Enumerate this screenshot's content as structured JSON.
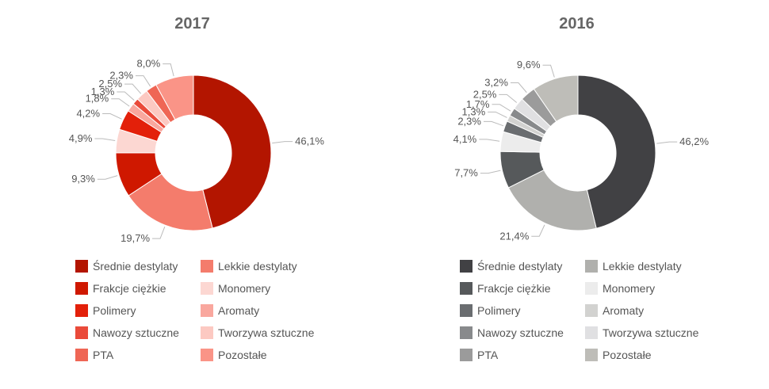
{
  "chart_data": [
    {
      "type": "pie",
      "title": "2017",
      "categories": [
        "Średnie destylaty",
        "Lekkie destylaty",
        "Frakcje ciężkie",
        "Monomery",
        "Polimery",
        "Aromaty",
        "Nawozy sztuczne",
        "Tworzywa sztuczne",
        "PTA",
        "Pozostałe"
      ],
      "values": [
        46.1,
        19.7,
        9.3,
        4.9,
        4.2,
        1.8,
        1.3,
        2.5,
        2.3,
        8.0
      ],
      "value_labels": [
        "46,1%",
        "19,7%",
        "9,3%",
        "4,9%",
        "4,2%",
        "1,8%",
        "1,3%",
        "2,5%",
        "2,3%",
        "8,0%"
      ],
      "colors": [
        "#b31500",
        "#f47c6c",
        "#cf1800",
        "#fcd7d2",
        "#e3200a",
        "#f9a79e",
        "#ea4a3a",
        "#fcc9c2",
        "#ef6655",
        "#fa9487"
      ],
      "legend_placement": "bottom"
    },
    {
      "type": "pie",
      "title": "2016",
      "categories": [
        "Średnie destylaty",
        "Lekkie destylaty",
        "Frakcje ciężkie",
        "Monomery",
        "Polimery",
        "Aromaty",
        "Nawozy sztuczne",
        "Tworzywa sztuczne",
        "PTA",
        "Pozostałe"
      ],
      "values": [
        46.2,
        21.4,
        7.7,
        4.1,
        2.3,
        1.3,
        1.7,
        2.5,
        3.2,
        9.6
      ],
      "value_labels": [
        "46,2%",
        "21,4%",
        "7,7%",
        "4,1%",
        "2,3%",
        "1,3%",
        "1,7%",
        "2,5%",
        "3,2%",
        "9,6%"
      ],
      "colors": [
        "#414144",
        "#b0b0ad",
        "#56595b",
        "#ececec",
        "#6a6d70",
        "#d2d2d0",
        "#888a8c",
        "#e0e0e2",
        "#9b9b9b",
        "#bebdb8"
      ],
      "legend_placement": "bottom"
    }
  ]
}
